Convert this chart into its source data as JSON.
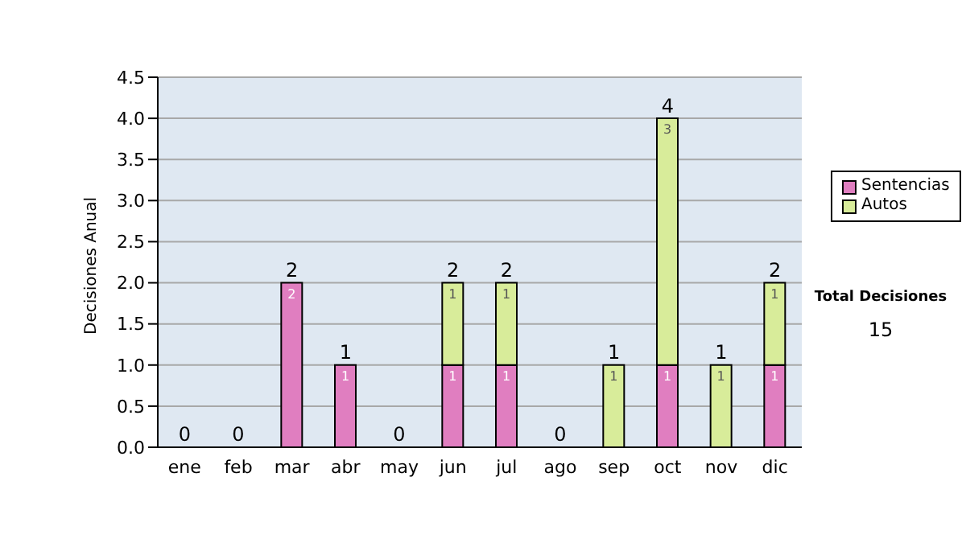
{
  "chart_data": {
    "type": "bar",
    "stacked": true,
    "ylabel": "Decisiones Anual",
    "categories": [
      "ene",
      "feb",
      "mar",
      "abr",
      "may",
      "jun",
      "jul",
      "ago",
      "sep",
      "oct",
      "nov",
      "dic"
    ],
    "series": [
      {
        "name": "Sentencias",
        "color": "#e07ec0",
        "values": [
          null,
          null,
          2,
          1,
          null,
          1,
          1,
          null,
          null,
          1,
          null,
          1
        ]
      },
      {
        "name": "Autos",
        "color": "#d8ec9a",
        "values": [
          null,
          null,
          null,
          null,
          null,
          1,
          1,
          null,
          1,
          3,
          1,
          1
        ]
      }
    ],
    "ylim": [
      0,
      4.5
    ],
    "yticks": [
      {
        "value": 0,
        "label": "0.0"
      },
      0.5,
      {
        "value": 1,
        "label": "1.0"
      },
      1.5,
      {
        "value": 2,
        "label": "2.0"
      },
      2.5,
      {
        "value": 3,
        "label": "3.0"
      },
      3.5,
      {
        "value": 4,
        "label": "4.0"
      },
      4.5
    ],
    "grid": "y",
    "legend": "right",
    "data_labels": true,
    "totals": [
      "0",
      "0",
      "2",
      "1",
      "0",
      "2",
      "2",
      "0",
      "1",
      "4",
      "1",
      "2"
    ],
    "annotations": [
      "Total Decisiones",
      "15"
    ]
  }
}
